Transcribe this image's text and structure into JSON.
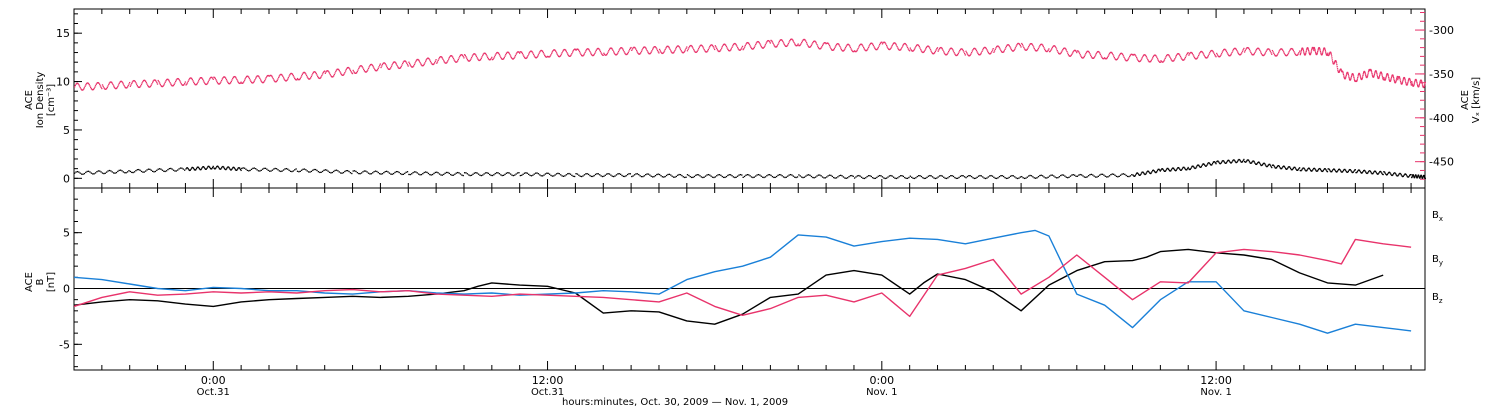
{
  "chart_data": [
    {
      "type": "scatter",
      "panel": "top",
      "x_unit": "hours since Oct. 30, 2009 00:00",
      "xlim": [
        19,
        67.5
      ],
      "grid": false,
      "ylabel_left": {
        "line1": "ACE",
        "line2": "Ion Density",
        "units": "[cm⁻³]"
      },
      "ylabel_right": {
        "line1": "ACE",
        "line2": "Vₓ [km/s]"
      },
      "ylim_left": [
        -1,
        17.5
      ],
      "yticks_left": [
        0,
        5,
        10,
        15
      ],
      "ylim_right": [
        -480,
        -276
      ],
      "yticks_right": [
        -300,
        -350,
        -400,
        -450
      ],
      "series": [
        {
          "axis": "right",
          "color": "#e8336b",
          "values_xy": [
            [
              19,
              -364
            ],
            [
              20,
              -363
            ],
            [
              21,
              -361
            ],
            [
              22,
              -360
            ],
            [
              23,
              -358
            ],
            [
              24,
              -357
            ],
            [
              25,
              -356
            ],
            [
              26,
              -355
            ],
            [
              27,
              -352
            ],
            [
              28,
              -350
            ],
            [
              29,
              -345
            ],
            [
              30,
              -341
            ],
            [
              31,
              -338
            ],
            [
              32,
              -334
            ],
            [
              33,
              -331
            ],
            [
              34,
              -329
            ],
            [
              35,
              -328
            ],
            [
              36,
              -326
            ],
            [
              37,
              -325
            ],
            [
              38,
              -324
            ],
            [
              39,
              -323
            ],
            [
              40,
              -322
            ],
            [
              41,
              -321
            ],
            [
              42,
              -320
            ],
            [
              43,
              -318
            ],
            [
              44,
              -315
            ],
            [
              45,
              -313
            ],
            [
              46,
              -318
            ],
            [
              47,
              -320
            ],
            [
              48,
              -317
            ],
            [
              49,
              -319
            ],
            [
              50,
              -323
            ],
            [
              51,
              -325
            ],
            [
              52,
              -322
            ],
            [
              53,
              -318
            ],
            [
              54,
              -320
            ],
            [
              55,
              -327
            ],
            [
              56,
              -328
            ],
            [
              57,
              -331
            ],
            [
              58,
              -332
            ],
            [
              59,
              -329
            ],
            [
              60,
              -326
            ],
            [
              61,
              -323
            ],
            [
              62,
              -325
            ],
            [
              63,
              -324
            ],
            [
              63.5,
              -323
            ],
            [
              64,
              -324
            ],
            [
              64.5,
              -350
            ],
            [
              65,
              -354
            ],
            [
              65.5,
              -348
            ],
            [
              66,
              -352
            ],
            [
              66.5,
              -356
            ],
            [
              67,
              -359
            ],
            [
              67.5,
              -361
            ]
          ]
        },
        {
          "axis": "left",
          "color": "#000000",
          "values_xy": [
            [
              19,
              0.6
            ],
            [
              21,
              0.8
            ],
            [
              23,
              1.0
            ],
            [
              24,
              1.2
            ],
            [
              25,
              1.0
            ],
            [
              27,
              0.9
            ],
            [
              29,
              0.7
            ],
            [
              31,
              0.6
            ],
            [
              33,
              0.5
            ],
            [
              35,
              0.5
            ],
            [
              37,
              0.4
            ],
            [
              39,
              0.4
            ],
            [
              41,
              0.3
            ],
            [
              43,
              0.3
            ],
            [
              45,
              0.3
            ],
            [
              47,
              0.2
            ],
            [
              49,
              0.2
            ],
            [
              51,
              0.2
            ],
            [
              53,
              0.2
            ],
            [
              55,
              0.3
            ],
            [
              57,
              0.4
            ],
            [
              58,
              0.9
            ],
            [
              59,
              1.1
            ],
            [
              60,
              1.7
            ],
            [
              61,
              1.9
            ],
            [
              62,
              1.3
            ],
            [
              63,
              1.0
            ],
            [
              64,
              0.9
            ],
            [
              65,
              0.8
            ],
            [
              66,
              0.6
            ],
            [
              67,
              0.3
            ],
            [
              67.5,
              0.2
            ]
          ]
        }
      ]
    },
    {
      "type": "line",
      "panel": "bottom",
      "x_unit": "hours since Oct. 30, 2009 00:00",
      "xlim": [
        19,
        67.5
      ],
      "ylabel": {
        "line1": "ACE",
        "line2": "B",
        "units": "[nT]"
      },
      "ylim": [
        -7.3,
        9.0
      ],
      "yticks": [
        -5,
        0,
        5
      ],
      "zero_line": true,
      "series": [
        {
          "name": "Bₓ",
          "color": "#000000",
          "values_xy": [
            [
              19,
              -1.5
            ],
            [
              20,
              -1.2
            ],
            [
              21,
              -1.0
            ],
            [
              22,
              -1.1
            ],
            [
              23,
              -1.4
            ],
            [
              24,
              -1.6
            ],
            [
              25,
              -1.2
            ],
            [
              26,
              -1.0
            ],
            [
              27,
              -0.9
            ],
            [
              28,
              -0.8
            ],
            [
              29,
              -0.7
            ],
            [
              30,
              -0.8
            ],
            [
              31,
              -0.7
            ],
            [
              32,
              -0.5
            ],
            [
              33,
              -0.2
            ],
            [
              33.5,
              0.2
            ],
            [
              34,
              0.5
            ],
            [
              35,
              0.3
            ],
            [
              36,
              0.2
            ],
            [
              37,
              -0.4
            ],
            [
              38,
              -2.2
            ],
            [
              39,
              -2.0
            ],
            [
              40,
              -2.1
            ],
            [
              41,
              -2.9
            ],
            [
              42,
              -3.2
            ],
            [
              43,
              -2.3
            ],
            [
              44,
              -0.8
            ],
            [
              45,
              -0.5
            ],
            [
              46,
              1.2
            ],
            [
              47,
              1.6
            ],
            [
              48,
              1.2
            ],
            [
              49,
              -0.5
            ],
            [
              49.5,
              0.5
            ],
            [
              50,
              1.3
            ],
            [
              51,
              0.8
            ],
            [
              52,
              -0.3
            ],
            [
              53,
              -2.0
            ],
            [
              54,
              0.3
            ],
            [
              55,
              1.6
            ],
            [
              56,
              2.4
            ],
            [
              57,
              2.5
            ],
            [
              57.5,
              2.8
            ],
            [
              58,
              3.3
            ],
            [
              59,
              3.5
            ],
            [
              60,
              3.2
            ],
            [
              61,
              3.0
            ],
            [
              62,
              2.6
            ],
            [
              63,
              1.4
            ],
            [
              64,
              0.5
            ],
            [
              65,
              0.3
            ],
            [
              66,
              1.2
            ]
          ]
        },
        {
          "name": "B_y",
          "color": "#1a80d8",
          "values_xy": [
            [
              19,
              1.0
            ],
            [
              20,
              0.8
            ],
            [
              21,
              0.4
            ],
            [
              22,
              0.0
            ],
            [
              23,
              -0.2
            ],
            [
              24,
              0.1
            ],
            [
              25,
              0.0
            ],
            [
              26,
              -0.2
            ],
            [
              27,
              -0.2
            ],
            [
              28,
              -0.4
            ],
            [
              29,
              -0.5
            ],
            [
              30,
              -0.3
            ],
            [
              31,
              -0.2
            ],
            [
              32,
              -0.4
            ],
            [
              33,
              -0.5
            ],
            [
              34,
              -0.4
            ],
            [
              35,
              -0.6
            ],
            [
              36,
              -0.5
            ],
            [
              37,
              -0.4
            ],
            [
              38,
              -0.2
            ],
            [
              39,
              -0.3
            ],
            [
              40,
              -0.5
            ],
            [
              41,
              0.8
            ],
            [
              42,
              1.5
            ],
            [
              43,
              2.0
            ],
            [
              44,
              2.8
            ],
            [
              45,
              4.8
            ],
            [
              46,
              4.6
            ],
            [
              47,
              3.8
            ],
            [
              48,
              4.2
            ],
            [
              49,
              4.5
            ],
            [
              50,
              4.4
            ],
            [
              51,
              4.0
            ],
            [
              52,
              4.5
            ],
            [
              53,
              5.0
            ],
            [
              53.5,
              5.2
            ],
            [
              54,
              4.7
            ],
            [
              55,
              -0.5
            ],
            [
              56,
              -1.5
            ],
            [
              57,
              -3.5
            ],
            [
              58,
              -1.0
            ],
            [
              59,
              0.6
            ],
            [
              60,
              0.6
            ],
            [
              61,
              -2.0
            ],
            [
              62,
              -2.6
            ],
            [
              63,
              -3.2
            ],
            [
              64,
              -4.0
            ],
            [
              65,
              -3.2
            ],
            [
              66,
              -3.5
            ],
            [
              67,
              -3.8
            ]
          ]
        },
        {
          "name": "B_z",
          "color": "#e8336b",
          "values_xy": [
            [
              19,
              -1.6
            ],
            [
              20,
              -0.8
            ],
            [
              21,
              -0.3
            ],
            [
              22,
              -0.6
            ],
            [
              23,
              -0.5
            ],
            [
              24,
              -0.3
            ],
            [
              25,
              -0.4
            ],
            [
              26,
              -0.3
            ],
            [
              27,
              -0.4
            ],
            [
              28,
              -0.2
            ],
            [
              29,
              -0.1
            ],
            [
              30,
              -0.3
            ],
            [
              31,
              -0.2
            ],
            [
              32,
              -0.5
            ],
            [
              33,
              -0.6
            ],
            [
              34,
              -0.7
            ],
            [
              35,
              -0.5
            ],
            [
              36,
              -0.6
            ],
            [
              37,
              -0.7
            ],
            [
              38,
              -0.8
            ],
            [
              39,
              -1.0
            ],
            [
              40,
              -1.2
            ],
            [
              41,
              -0.4
            ],
            [
              42,
              -1.6
            ],
            [
              43,
              -2.4
            ],
            [
              44,
              -1.8
            ],
            [
              45,
              -0.8
            ],
            [
              46,
              -0.6
            ],
            [
              47,
              -1.2
            ],
            [
              48,
              -0.4
            ],
            [
              49,
              -2.5
            ],
            [
              50,
              1.2
            ],
            [
              51,
              1.8
            ],
            [
              52,
              2.6
            ],
            [
              53,
              -0.5
            ],
            [
              54,
              1.0
            ],
            [
              55,
              3.0
            ],
            [
              56,
              1.0
            ],
            [
              57,
              -1.0
            ],
            [
              58,
              0.6
            ],
            [
              59,
              0.5
            ],
            [
              60,
              3.2
            ],
            [
              61,
              3.5
            ],
            [
              62,
              3.3
            ],
            [
              63,
              3.0
            ],
            [
              64,
              2.5
            ],
            [
              64.5,
              2.2
            ],
            [
              65,
              4.4
            ],
            [
              66,
              4.0
            ],
            [
              67,
              3.7
            ]
          ]
        }
      ]
    }
  ],
  "x_ticks": [
    {
      "hour": 24,
      "line1": "0:00",
      "line2": "Oct.31"
    },
    {
      "hour": 36,
      "line1": "12:00",
      "line2": "Oct.31"
    },
    {
      "hour": 48,
      "line1": "0:00",
      "line2": "Nov. 1"
    },
    {
      "hour": 60,
      "line1": "12:00",
      "line2": "Nov. 1"
    }
  ],
  "x_title": "hours:minutes, Oct. 30, 2009 — Nov.  1, 2009",
  "legend": [
    {
      "label": "B",
      "sub": "x",
      "color": "#000000"
    },
    {
      "label": "B",
      "sub": "y",
      "color": "#1a80d8"
    },
    {
      "label": "B",
      "sub": "z",
      "color": "#e8336b"
    }
  ]
}
